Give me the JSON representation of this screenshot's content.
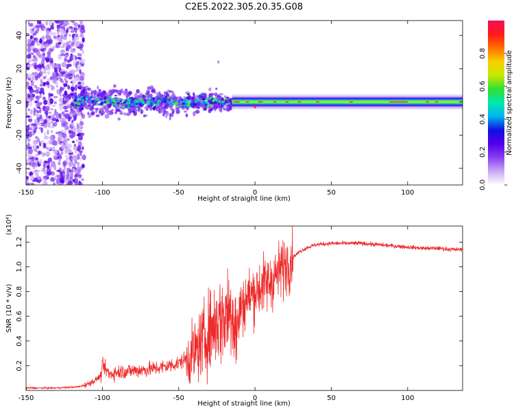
{
  "title": "C2E5.2022.305.20.35.G08",
  "chart_data": [
    {
      "type": "heatmap",
      "xlabel": "Height of straight line (km)",
      "ylabel": "Frequency (Hz)",
      "colorbar_label": "Normalized spectral amplitude",
      "xlim": [
        -150,
        136
      ],
      "ylim": [
        -50,
        49
      ],
      "x_ticks": [
        -150,
        -100,
        -50,
        0,
        50,
        100
      ],
      "y_ticks": [
        -40,
        -20,
        0,
        20,
        40
      ],
      "colorbar_range": [
        0,
        1
      ],
      "colorbar_ticks": [
        0.0,
        0.2,
        0.4,
        0.6,
        0.8
      ],
      "colorbar_tick_labels": [
        "0.0",
        "0.2",
        "0.4",
        "0.6",
        "0.8"
      ],
      "colorscale": [
        "#ffffff",
        "#c9a8f5",
        "#8a3ff0",
        "#5000e8",
        "#1010e0",
        "#00b4f0",
        "#00e8b0",
        "#30e030",
        "#c8e800",
        "#f8d000",
        "#ff7000",
        "#ff1818",
        "#f0105a"
      ],
      "band_description": {
        "noisy_scatter_x": [
          -150,
          -112
        ],
        "dense_band_x": [
          -120,
          -15
        ],
        "clean_carrier_x": [
          -15,
          136
        ],
        "carrier_frequency": 0
      }
    },
    {
      "type": "line",
      "xlabel": "Height of straight line (km)",
      "ylabel": "SNR (10 * v/v)",
      "y_multiplier": "(x10⁴)",
      "xlim": [
        -150,
        136
      ],
      "ylim": [
        0,
        1.33
      ],
      "x_ticks": [
        -150,
        -100,
        -50,
        0,
        50,
        100
      ],
      "y_ticks": [
        0.2,
        0.4,
        0.6,
        0.8,
        1.0,
        1.2
      ],
      "color": "#ee2a2a",
      "series": [
        {
          "x": [
            -150,
            -130,
            -115,
            -110,
            -105,
            -101,
            -100,
            -95,
            -90,
            -80,
            -70,
            -60,
            -50,
            -45,
            -40,
            -35,
            -30,
            -25,
            -20,
            -15,
            -12,
            -10,
            -5,
            0,
            5,
            10,
            15,
            20,
            25,
            30,
            35,
            40,
            50,
            60,
            70,
            80,
            90,
            100,
            110,
            120,
            130,
            136
          ],
          "y": [
            0.02,
            0.02,
            0.03,
            0.05,
            0.08,
            0.12,
            0.2,
            0.13,
            0.15,
            0.16,
            0.17,
            0.19,
            0.22,
            0.26,
            0.3,
            0.38,
            0.48,
            0.55,
            0.6,
            0.68,
            0.45,
            0.65,
            0.75,
            0.8,
            0.85,
            0.88,
            0.95,
            1.02,
            1.08,
            1.13,
            1.16,
            1.18,
            1.19,
            1.19,
            1.19,
            1.18,
            1.17,
            1.16,
            1.15,
            1.15,
            1.14,
            1.14
          ]
        }
      ]
    }
  ]
}
